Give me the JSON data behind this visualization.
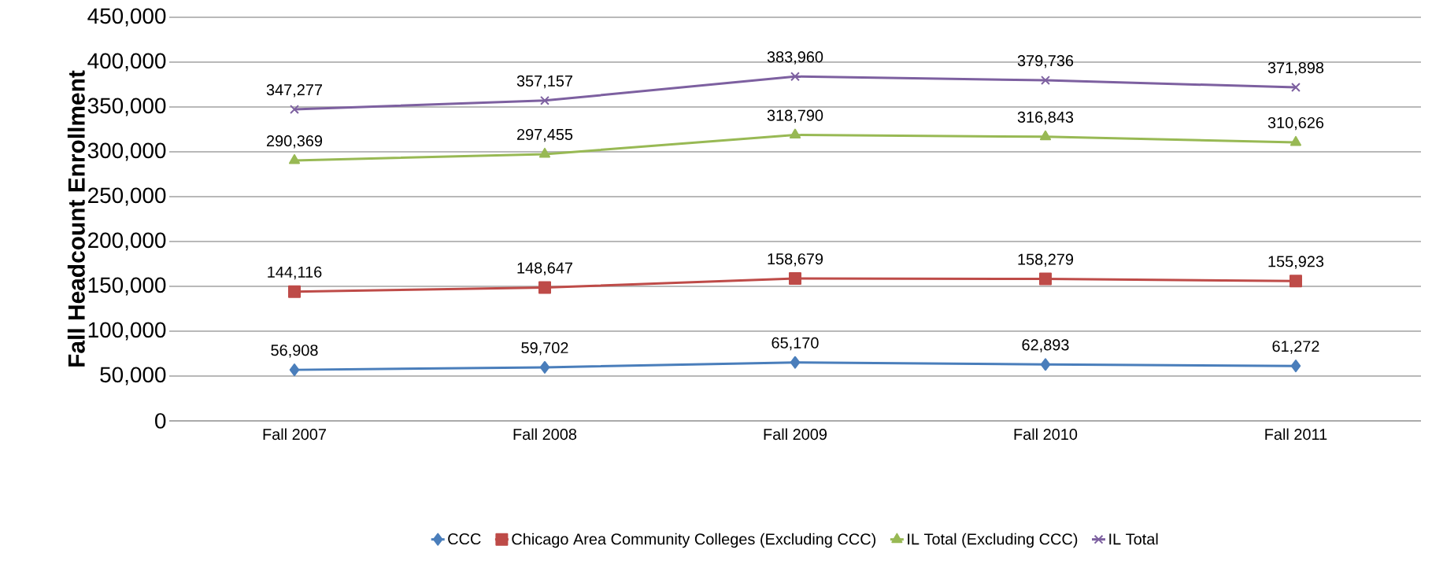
{
  "chart_data": {
    "type": "line",
    "ylabel": "Fall Headcount Enrollment",
    "categories": [
      "Fall 2007",
      "Fall 2008",
      "Fall 2009",
      "Fall 2010",
      "Fall 2011"
    ],
    "series": [
      {
        "name": "CCC",
        "color": "#4a7ebb",
        "marker": "diamond",
        "values": [
          56908,
          59702,
          65170,
          62893,
          61272
        ],
        "value_labels": [
          "56,908",
          "59,702",
          "65,170",
          "62,893",
          "61,272"
        ]
      },
      {
        "name": "Chicago Area Community Colleges (Excluding CCC)",
        "color": "#be4b48",
        "marker": "square",
        "values": [
          144116,
          148647,
          158679,
          158279,
          155923
        ],
        "value_labels": [
          "144,116",
          "148,647",
          "158,679",
          "158,279",
          "155,923"
        ]
      },
      {
        "name": "IL Total (Excluding CCC)",
        "color": "#98b954",
        "marker": "triangle",
        "values": [
          290369,
          297455,
          318790,
          316843,
          310626
        ],
        "value_labels": [
          "290,369",
          "297,455",
          "318,790",
          "316,843",
          "310,626"
        ]
      },
      {
        "name": "IL Total",
        "color": "#7d60a0",
        "marker": "cross",
        "values": [
          347277,
          357157,
          383960,
          379736,
          371898
        ],
        "value_labels": [
          "347,277",
          "357,157",
          "383,960",
          "379,736",
          "371,898"
        ]
      }
    ],
    "ylim": [
      0,
      450000
    ],
    "yticks": [
      {
        "value": 0,
        "label": "0"
      },
      {
        "value": 50000,
        "label": "50,000"
      },
      {
        "value": 100000,
        "label": "100,000"
      },
      {
        "value": 150000,
        "label": "150,000"
      },
      {
        "value": 200000,
        "label": "200,000"
      },
      {
        "value": 250000,
        "label": "250,000"
      },
      {
        "value": 300000,
        "label": "300,000"
      },
      {
        "value": 350000,
        "label": "350,000"
      },
      {
        "value": 400000,
        "label": "400,000"
      },
      {
        "value": 450000,
        "label": "450,000"
      }
    ],
    "grid": "y",
    "legend": "bottom"
  }
}
